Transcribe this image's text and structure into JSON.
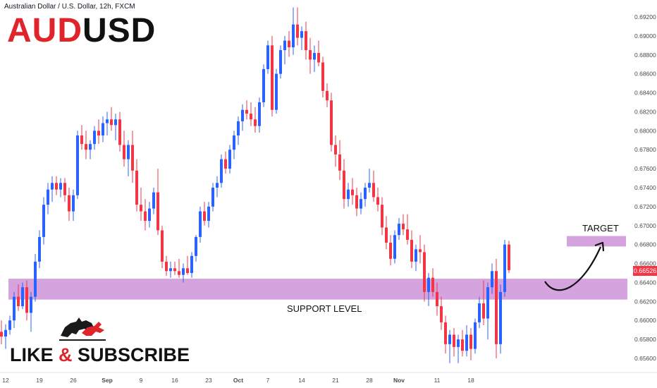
{
  "header": {
    "symbol_line": "Australian Dollar / U.S. Dollar, 12h, FXCM",
    "pair_base": "AUD",
    "pair_quote": "USD"
  },
  "annotations": {
    "support_label": "SUPPORT LEVEL",
    "target_label": "TARGET",
    "cta_like": "LIKE",
    "cta_amp": "&",
    "cta_subscribe": "SUBSCRIBE",
    "current_price_tag": "0.66526"
  },
  "colors": {
    "bull": "#2962ff",
    "bear": "#f23645",
    "zone": "#ce93d8",
    "brand_red": "#e0242b",
    "text": "#131722"
  },
  "icons": [
    "bull-bear-logo-icon",
    "curved-arrow-icon"
  ],
  "chart_data": {
    "type": "candlestick",
    "title": "Australian Dollar / U.S. Dollar, 12h, FXCM",
    "ylim": [
      0.6545,
      0.693
    ],
    "y_ticks": [
      "0.69200",
      "0.69000",
      "0.68800",
      "0.68600",
      "0.68400",
      "0.68200",
      "0.68000",
      "0.67800",
      "0.67600",
      "0.67400",
      "0.67200",
      "0.67000",
      "0.66800",
      "0.66600",
      "0.66400",
      "0.66200",
      "0.66000",
      "0.65800",
      "0.65600"
    ],
    "x_ticks": [
      "12",
      "19",
      "26",
      "Sep",
      "9",
      "16",
      "23",
      "Oct",
      "7",
      "14",
      "21",
      "28",
      "Nov",
      "11",
      "18"
    ],
    "x_tick_bar_index": [
      1,
      9,
      17,
      25,
      33,
      41,
      49,
      56,
      63,
      71,
      79,
      87,
      94,
      103,
      111
    ],
    "current_price": 0.66526,
    "zones": [
      {
        "label": "SUPPORT LEVEL",
        "low": 0.6622,
        "high": 0.6644
      },
      {
        "label": "TARGET",
        "low": 0.6678,
        "high": 0.6689
      }
    ],
    "candles": [
      [
        0.6588,
        0.66,
        0.6575,
        0.6583
      ],
      [
        0.6583,
        0.6596,
        0.657,
        0.659
      ],
      [
        0.659,
        0.6605,
        0.6585,
        0.66
      ],
      [
        0.66,
        0.663,
        0.6592,
        0.6625
      ],
      [
        0.6625,
        0.6638,
        0.661,
        0.6615
      ],
      [
        0.6615,
        0.664,
        0.6612,
        0.6635
      ],
      [
        0.6635,
        0.6642,
        0.66,
        0.6608
      ],
      [
        0.6608,
        0.663,
        0.6588,
        0.6625
      ],
      [
        0.6625,
        0.667,
        0.662,
        0.6662
      ],
      [
        0.6662,
        0.6695,
        0.6655,
        0.6688
      ],
      [
        0.6688,
        0.673,
        0.668,
        0.6722
      ],
      [
        0.6722,
        0.6745,
        0.6712,
        0.6738
      ],
      [
        0.6738,
        0.6752,
        0.6725,
        0.6745
      ],
      [
        0.6745,
        0.6752,
        0.6732,
        0.6738
      ],
      [
        0.6738,
        0.675,
        0.673,
        0.6745
      ],
      [
        0.6745,
        0.675,
        0.6725,
        0.6732
      ],
      [
        0.6732,
        0.674,
        0.6705,
        0.6715
      ],
      [
        0.6715,
        0.6738,
        0.6705,
        0.6732
      ],
      [
        0.6732,
        0.68,
        0.6728,
        0.6795
      ],
      [
        0.6795,
        0.6806,
        0.678,
        0.6786
      ],
      [
        0.6786,
        0.68,
        0.677,
        0.678
      ],
      [
        0.678,
        0.679,
        0.677,
        0.6786
      ],
      [
        0.6786,
        0.6805,
        0.678,
        0.68
      ],
      [
        0.68,
        0.6812,
        0.6786,
        0.6795
      ],
      [
        0.6795,
        0.6815,
        0.6788,
        0.6808
      ],
      [
        0.6808,
        0.682,
        0.6795,
        0.6812
      ],
      [
        0.6812,
        0.6825,
        0.68,
        0.6806
      ],
      [
        0.6806,
        0.6818,
        0.679,
        0.6812
      ],
      [
        0.6812,
        0.682,
        0.6778,
        0.6785
      ],
      [
        0.6785,
        0.68,
        0.6762,
        0.677
      ],
      [
        0.677,
        0.679,
        0.6752,
        0.6785
      ],
      [
        0.6785,
        0.68,
        0.6745,
        0.6758
      ],
      [
        0.6758,
        0.677,
        0.6715,
        0.6722
      ],
      [
        0.6722,
        0.674,
        0.6705,
        0.6715
      ],
      [
        0.6715,
        0.6728,
        0.6695,
        0.6705
      ],
      [
        0.6705,
        0.6725,
        0.6698,
        0.6718
      ],
      [
        0.6718,
        0.674,
        0.6712,
        0.6735
      ],
      [
        0.6735,
        0.676,
        0.669,
        0.6695
      ],
      [
        0.6695,
        0.67,
        0.6655,
        0.6662
      ],
      [
        0.6662,
        0.6668,
        0.6647,
        0.6652
      ],
      [
        0.6652,
        0.6662,
        0.6645,
        0.6655
      ],
      [
        0.6655,
        0.6662,
        0.6648,
        0.6652
      ],
      [
        0.6652,
        0.6665,
        0.6645,
        0.6648
      ],
      [
        0.6648,
        0.666,
        0.664,
        0.6655
      ],
      [
        0.6655,
        0.6668,
        0.6648,
        0.665
      ],
      [
        0.665,
        0.6672,
        0.6645,
        0.6668
      ],
      [
        0.6668,
        0.669,
        0.6662,
        0.6688
      ],
      [
        0.6688,
        0.672,
        0.6682,
        0.6715
      ],
      [
        0.6715,
        0.6725,
        0.67,
        0.6705
      ],
      [
        0.6705,
        0.6725,
        0.6698,
        0.672
      ],
      [
        0.672,
        0.6745,
        0.6715,
        0.674
      ],
      [
        0.674,
        0.6752,
        0.673,
        0.6745
      ],
      [
        0.6745,
        0.6775,
        0.674,
        0.677
      ],
      [
        0.677,
        0.6778,
        0.6755,
        0.676
      ],
      [
        0.676,
        0.6785,
        0.6755,
        0.678
      ],
      [
        0.678,
        0.68,
        0.677,
        0.6795
      ],
      [
        0.6795,
        0.6815,
        0.6785,
        0.681
      ],
      [
        0.681,
        0.6828,
        0.68,
        0.6822
      ],
      [
        0.6822,
        0.6832,
        0.6812,
        0.6818
      ],
      [
        0.6818,
        0.683,
        0.6805,
        0.6812
      ],
      [
        0.6812,
        0.6825,
        0.6798,
        0.6805
      ],
      [
        0.6805,
        0.6835,
        0.6798,
        0.683
      ],
      [
        0.683,
        0.687,
        0.6825,
        0.6865
      ],
      [
        0.6865,
        0.6895,
        0.686,
        0.689
      ],
      [
        0.689,
        0.69,
        0.6815,
        0.6822
      ],
      [
        0.6822,
        0.6865,
        0.6818,
        0.686
      ],
      [
        0.686,
        0.689,
        0.6855,
        0.6885
      ],
      [
        0.6885,
        0.69,
        0.687,
        0.6895
      ],
      [
        0.6895,
        0.6905,
        0.6878,
        0.6888
      ],
      [
        0.6888,
        0.693,
        0.688,
        0.6912
      ],
      [
        0.6912,
        0.693,
        0.689,
        0.6898
      ],
      [
        0.6898,
        0.691,
        0.6885,
        0.6905
      ],
      [
        0.6905,
        0.6915,
        0.6875,
        0.6885
      ],
      [
        0.6885,
        0.6898,
        0.686,
        0.6875
      ],
      [
        0.6875,
        0.689,
        0.6862,
        0.6882
      ],
      [
        0.6882,
        0.6895,
        0.6868,
        0.6872
      ],
      [
        0.6872,
        0.6878,
        0.6835,
        0.6842
      ],
      [
        0.6842,
        0.685,
        0.6825,
        0.6832
      ],
      [
        0.6832,
        0.684,
        0.6778,
        0.6785
      ],
      [
        0.6785,
        0.6795,
        0.6762,
        0.6775
      ],
      [
        0.6775,
        0.679,
        0.6748,
        0.6758
      ],
      [
        0.6758,
        0.677,
        0.6718,
        0.6728
      ],
      [
        0.6728,
        0.6745,
        0.672,
        0.6738
      ],
      [
        0.6738,
        0.675,
        0.6722,
        0.6732
      ],
      [
        0.6732,
        0.674,
        0.671,
        0.6718
      ],
      [
        0.6718,
        0.6735,
        0.6712,
        0.6728
      ],
      [
        0.6728,
        0.6745,
        0.672,
        0.674
      ],
      [
        0.674,
        0.676,
        0.6735,
        0.6745
      ],
      [
        0.6745,
        0.6758,
        0.6725,
        0.673
      ],
      [
        0.673,
        0.674,
        0.6715,
        0.6722
      ],
      [
        0.6722,
        0.673,
        0.669,
        0.6698
      ],
      [
        0.6698,
        0.671,
        0.6675,
        0.6682
      ],
      [
        0.6682,
        0.669,
        0.6658,
        0.6665
      ],
      [
        0.6665,
        0.6695,
        0.666,
        0.669
      ],
      [
        0.669,
        0.6708,
        0.6685,
        0.6702
      ],
      [
        0.6702,
        0.6712,
        0.669,
        0.6696
      ],
      [
        0.6696,
        0.6712,
        0.668,
        0.6685
      ],
      [
        0.6685,
        0.6695,
        0.6655,
        0.6662
      ],
      [
        0.6662,
        0.668,
        0.6652,
        0.6675
      ],
      [
        0.6675,
        0.669,
        0.666,
        0.6672
      ],
      [
        0.6672,
        0.668,
        0.662,
        0.663
      ],
      [
        0.663,
        0.665,
        0.6615,
        0.6645
      ],
      [
        0.6645,
        0.6655,
        0.6625,
        0.663
      ],
      [
        0.663,
        0.664,
        0.6605,
        0.6615
      ],
      [
        0.6615,
        0.6625,
        0.659,
        0.6598
      ],
      [
        0.6598,
        0.6605,
        0.6565,
        0.6575
      ],
      [
        0.6575,
        0.659,
        0.6555,
        0.6585
      ],
      [
        0.6585,
        0.6592,
        0.6562,
        0.6572
      ],
      [
        0.6572,
        0.6585,
        0.6555,
        0.658
      ],
      [
        0.658,
        0.659,
        0.6562,
        0.6568
      ],
      [
        0.6568,
        0.6595,
        0.6562,
        0.6585
      ],
      [
        0.6585,
        0.6592,
        0.6558,
        0.657
      ],
      [
        0.657,
        0.6602,
        0.6565,
        0.6598
      ],
      [
        0.6598,
        0.6625,
        0.6592,
        0.6618
      ],
      [
        0.6618,
        0.6642,
        0.6595,
        0.6602
      ],
      [
        0.6602,
        0.664,
        0.658,
        0.6635
      ],
      [
        0.6635,
        0.666,
        0.6628,
        0.6652
      ],
      [
        0.6652,
        0.6665,
        0.656,
        0.6575
      ],
      [
        0.6575,
        0.6638,
        0.6565,
        0.663
      ],
      [
        0.663,
        0.6685,
        0.6625,
        0.668
      ],
      [
        0.668,
        0.6684,
        0.665,
        0.6653
      ]
    ]
  }
}
